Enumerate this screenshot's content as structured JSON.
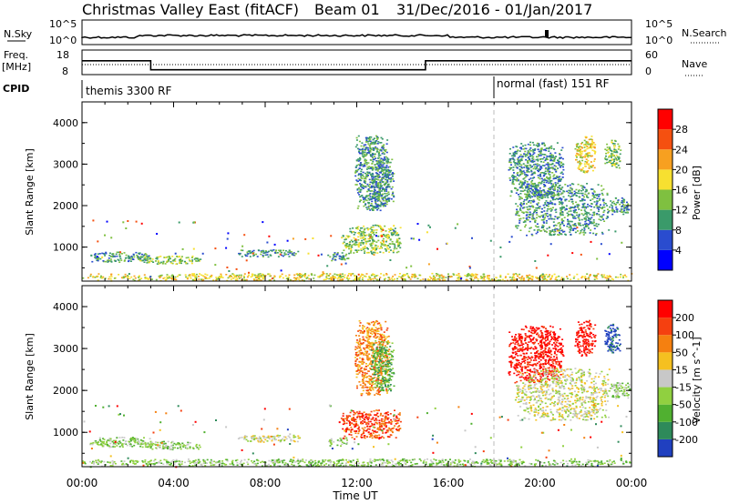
{
  "header": {
    "site": "Christmas Valley East (fitACF)",
    "beam": "Beam 01",
    "dates": "31/Dec/2016 - 01/Jan/2017"
  },
  "noise_panel": {
    "left_label": "N.Sky",
    "right_label": "N.Search",
    "left_ticks": [
      "10^5",
      "10^0"
    ],
    "right_ticks": [
      "10^5",
      "10^0"
    ]
  },
  "freq_panel": {
    "left_label_1": "Freq.",
    "left_label_2": "[MHz]",
    "left_ticks": [
      "18",
      "8"
    ],
    "right_label": "Nave",
    "right_ticks": [
      "60",
      "0"
    ],
    "freq_segments": [
      [
        0,
        3,
        14
      ],
      [
        3,
        15,
        9.5
      ],
      [
        15,
        24,
        14
      ]
    ]
  },
  "cpid": {
    "label": "CPID",
    "modes": [
      {
        "name": "themis 3300 RF",
        "start": 0
      },
      {
        "name": "normal (fast) 151 RF",
        "start": 18
      }
    ]
  },
  "x_axis": {
    "label": "Time UT",
    "ticks": [
      "00:00",
      "04:00",
      "08:00",
      "12:00",
      "16:00",
      "20:00",
      "00:00"
    ],
    "range_hours": [
      0,
      24
    ]
  },
  "y_axis": {
    "label": "Slant Range [km]",
    "ticks": [
      "4000",
      "3000",
      "2000",
      "1000"
    ],
    "range_km": [
      180,
      4500
    ]
  },
  "chart_data": [
    {
      "type": "heatmap",
      "name": "power",
      "colorbar_label": "Power [dB]",
      "colorbar_ticks": [
        "28",
        "24",
        "20",
        "16",
        "12",
        "8",
        "4"
      ],
      "colors": [
        "#0000ff",
        "#2a4ccf",
        "#3a9a6a",
        "#7fc040",
        "#f7e030",
        "#f7a020",
        "#f55010",
        "#ff0000"
      ],
      "patches": [
        {
          "t": [
            0.3,
            3.0
          ],
          "r": [
            650,
            900
          ],
          "level": 2
        },
        {
          "t": [
            2.5,
            5.2
          ],
          "r": [
            600,
            800
          ],
          "level": 3
        },
        {
          "t": [
            6.8,
            9.5
          ],
          "r": [
            780,
            950
          ],
          "level": 2
        },
        {
          "t": [
            10.7,
            11.6
          ],
          "r": [
            690,
            880
          ],
          "level": 2
        },
        {
          "t": [
            11.3,
            13.9
          ],
          "r": [
            850,
            1550
          ],
          "level": 3
        },
        {
          "t": [
            11.9,
            13.4
          ],
          "r": [
            1900,
            3700
          ],
          "level": 2
        },
        {
          "t": [
            12.6,
            13.6
          ],
          "r": [
            2000,
            3200
          ],
          "level": 2
        },
        {
          "t": [
            18.6,
            21.0
          ],
          "r": [
            2200,
            3550
          ],
          "level": 2
        },
        {
          "t": [
            18.9,
            23.0
          ],
          "r": [
            1300,
            2550
          ],
          "level": 2
        },
        {
          "t": [
            21.5,
            22.4
          ],
          "r": [
            2800,
            3700
          ],
          "level": 4
        },
        {
          "t": [
            22.8,
            23.5
          ],
          "r": [
            2900,
            3600
          ],
          "level": 3
        },
        {
          "t": [
            23.0,
            23.9
          ],
          "r": [
            1800,
            2200
          ],
          "level": 2
        },
        {
          "t": [
            0.0,
            24.0
          ],
          "r": [
            200,
            380
          ],
          "level": 4
        }
      ]
    },
    {
      "type": "heatmap",
      "name": "velocity",
      "colorbar_label": "Velocity [m s^-1]",
      "colorbar_ticks": [
        "200",
        "100",
        "50",
        "15",
        "-15",
        "-50",
        "-100",
        "-200"
      ],
      "colors": [
        "#2040c0",
        "#2e8a5a",
        "#50b030",
        "#90d040",
        "#c8c8c8",
        "#f5c020",
        "#f58010",
        "#f54010",
        "#ff0000"
      ],
      "patches": [
        {
          "t": [
            0.3,
            3.0
          ],
          "r": [
            650,
            900
          ],
          "level": 3
        },
        {
          "t": [
            2.5,
            5.2
          ],
          "r": [
            600,
            800
          ],
          "level": 3
        },
        {
          "t": [
            6.8,
            9.5
          ],
          "r": [
            780,
            950
          ],
          "level": 4
        },
        {
          "t": [
            10.7,
            11.6
          ],
          "r": [
            690,
            880
          ],
          "level": 3
        },
        {
          "t": [
            11.3,
            13.9
          ],
          "r": [
            850,
            1550
          ],
          "level": 7
        },
        {
          "t": [
            11.9,
            13.4
          ],
          "r": [
            1900,
            3700
          ],
          "level": 6
        },
        {
          "t": [
            12.6,
            13.6
          ],
          "r": [
            2000,
            3200
          ],
          "level": 2
        },
        {
          "t": [
            18.6,
            21.0
          ],
          "r": [
            2200,
            3550
          ],
          "level": 8
        },
        {
          "t": [
            18.9,
            23.0
          ],
          "r": [
            1300,
            2550
          ],
          "level": 4
        },
        {
          "t": [
            21.5,
            22.4
          ],
          "r": [
            2800,
            3700
          ],
          "level": 8
        },
        {
          "t": [
            22.8,
            23.5
          ],
          "r": [
            2900,
            3600
          ],
          "level": 0
        },
        {
          "t": [
            23.0,
            23.9
          ],
          "r": [
            1800,
            2200
          ],
          "level": 3
        },
        {
          "t": [
            0.0,
            24.0
          ],
          "r": [
            200,
            380
          ],
          "level": 3
        }
      ]
    }
  ]
}
